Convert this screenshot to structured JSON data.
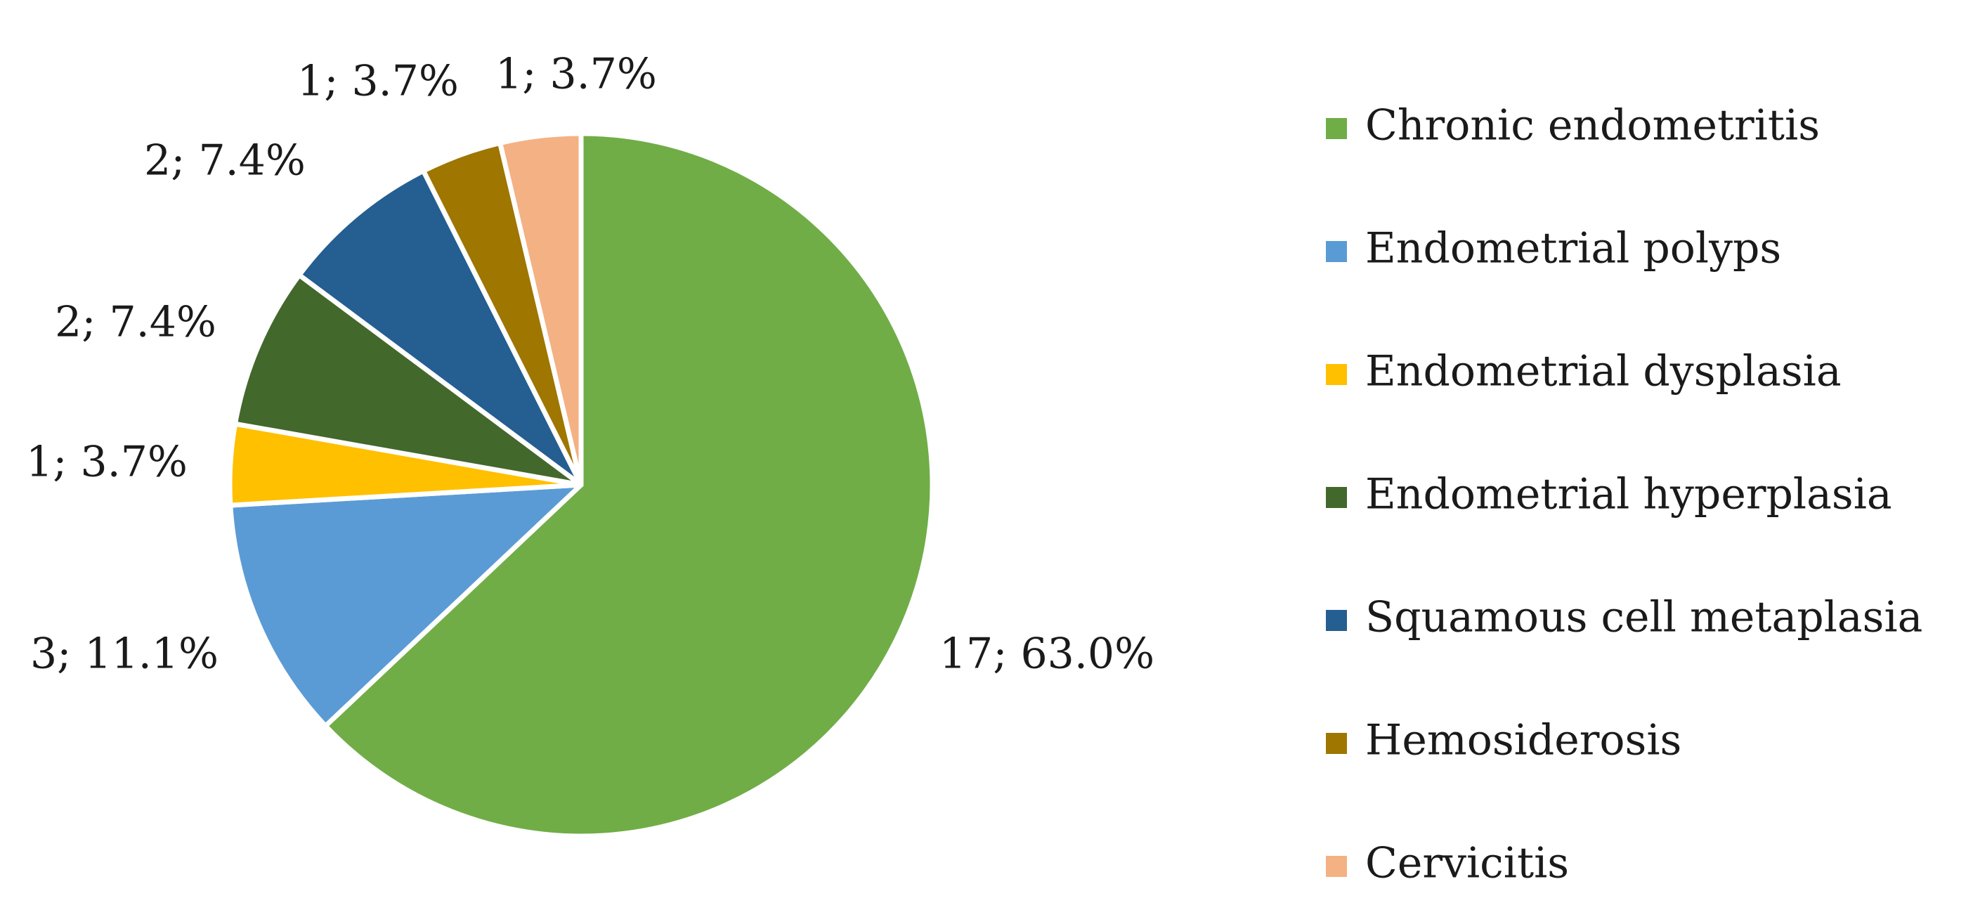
{
  "chart_data": {
    "type": "pie",
    "categories": [
      "Chronic endometritis",
      "Endometrial polyps",
      "Endometrial dysplasia",
      "Endometrial  hyperplasia",
      "Squamous cell metaplasia",
      "Hemosiderosis",
      "Cervicitis"
    ],
    "values": [
      17,
      3,
      1,
      2,
      2,
      1,
      1
    ],
    "data_labels": [
      "17; 63.0%",
      "3; 11.1%",
      "1; 3.7%",
      "2; 7.4%",
      "2; 7.4%",
      "1; 3.7%",
      "1; 3.7%"
    ],
    "colors": [
      "#70AD47",
      "#5B9BD5",
      "#FFC000",
      "#43682B",
      "#255E91",
      "#9E7600",
      "#F4B183"
    ],
    "legend_position": "right",
    "start_angle": "12 o'clock",
    "direction": "clockwise"
  }
}
